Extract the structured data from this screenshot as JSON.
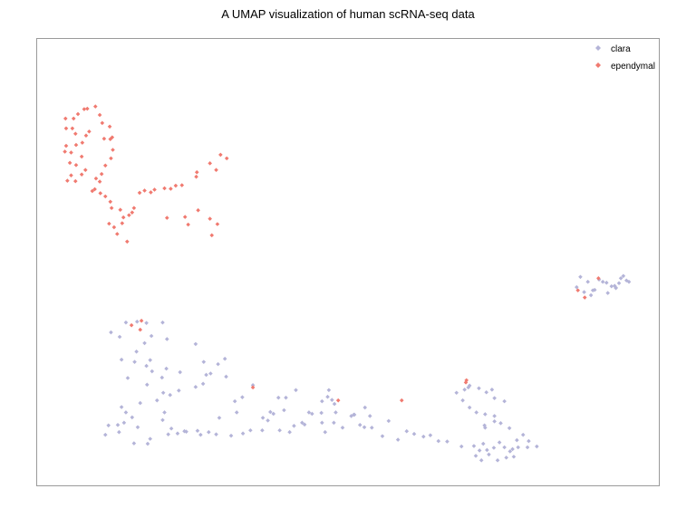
{
  "chart_data": {
    "type": "scatter",
    "title": "A UMAP visualization of human scRNA-seq data",
    "xlabel": "",
    "ylabel": "",
    "xlim": [
      0,
      100
    ],
    "ylim": [
      0,
      100
    ],
    "grid": false,
    "legend_position": "top-right",
    "series": [
      {
        "name": "clara",
        "color": "#B4B4D8",
        "points": [
          [
            14.4,
            36.4
          ],
          [
            16.2,
            36.6
          ],
          [
            17.7,
            36.3
          ],
          [
            20.3,
            36.4
          ],
          [
            12.0,
            34.2
          ],
          [
            13.4,
            33.2
          ],
          [
            18.5,
            33.4
          ],
          [
            17.4,
            31.8
          ],
          [
            21.0,
            32.7
          ],
          [
            16.1,
            29.9
          ],
          [
            13.7,
            28.1
          ],
          [
            15.8,
            27.6
          ],
          [
            17.7,
            26.7
          ],
          [
            14.7,
            24.0
          ],
          [
            18.6,
            25.5
          ],
          [
            20.9,
            26.1
          ],
          [
            18.3,
            28.0
          ],
          [
            25.6,
            31.6
          ],
          [
            26.9,
            27.6
          ],
          [
            30.3,
            28.3
          ],
          [
            23.1,
            25.3
          ],
          [
            20.2,
            24.1
          ],
          [
            17.8,
            22.5
          ],
          [
            20.4,
            20.7
          ],
          [
            19.4,
            19.0
          ],
          [
            16.7,
            18.4
          ],
          [
            13.7,
            17.5
          ],
          [
            14.4,
            16.3
          ],
          [
            15.4,
            15.2
          ],
          [
            14.1,
            14.0
          ],
          [
            13.1,
            13.5
          ],
          [
            11.6,
            13.4
          ],
          [
            16.3,
            13.0
          ],
          [
            13.3,
            11.9
          ],
          [
            11.1,
            11.3
          ],
          [
            15.7,
            9.4
          ],
          [
            17.9,
            9.3
          ],
          [
            18.3,
            10.4
          ],
          [
            21.2,
            11.4
          ],
          [
            21.7,
            12.7
          ],
          [
            20.3,
            14.6
          ],
          [
            20.6,
            16.3
          ],
          [
            21.5,
            20.2
          ],
          [
            22.9,
            21.2
          ],
          [
            25.6,
            22.0
          ],
          [
            26.8,
            22.7
          ],
          [
            27.3,
            24.7
          ],
          [
            28.0,
            25.0
          ],
          [
            29.2,
            27.1
          ],
          [
            30.5,
            24.3
          ],
          [
            33.1,
            19.7
          ],
          [
            31.9,
            18.8
          ],
          [
            34.8,
            22.4
          ],
          [
            38.1,
            16.0
          ],
          [
            36.4,
            15.1
          ],
          [
            37.6,
            16.4
          ],
          [
            38.9,
            19.6
          ],
          [
            40.1,
            19.6
          ],
          [
            41.7,
            21.3
          ],
          [
            46.8,
            19.8
          ],
          [
            39.8,
            16.8
          ],
          [
            43.8,
            16.3
          ],
          [
            44.3,
            16.0
          ],
          [
            45.9,
            18.8
          ],
          [
            47.0,
            21.3
          ],
          [
            47.5,
            19.1
          ],
          [
            47.9,
            18.2
          ],
          [
            45.8,
            16.2
          ],
          [
            48.1,
            16.3
          ],
          [
            50.6,
            15.5
          ],
          [
            51.1,
            15.8
          ],
          [
            51.0,
            15.8
          ],
          [
            52.8,
            17.4
          ],
          [
            53.6,
            15.5
          ],
          [
            56.6,
            14.4
          ],
          [
            52.7,
            13.0
          ],
          [
            52.0,
            13.5
          ],
          [
            47.8,
            14.0
          ],
          [
            45.9,
            14.0
          ],
          [
            43.1,
            13.6
          ],
          [
            41.4,
            13.3
          ],
          [
            40.7,
            11.9
          ],
          [
            39.1,
            12.3
          ],
          [
            36.3,
            12.3
          ],
          [
            33.2,
            11.6
          ],
          [
            31.3,
            11.1
          ],
          [
            28.9,
            11.4
          ],
          [
            27.7,
            11.9
          ],
          [
            26.4,
            11.3
          ],
          [
            25.9,
            12.2
          ],
          [
            22.7,
            11.6
          ],
          [
            23.8,
            12.1
          ],
          [
            24.1,
            12.0
          ],
          [
            29.4,
            15.1
          ],
          [
            32.2,
            16.3
          ],
          [
            34.4,
            12.3
          ],
          [
            37.2,
            14.5
          ],
          [
            42.7,
            14.0
          ],
          [
            46.4,
            11.9
          ],
          [
            49.2,
            12.9
          ],
          [
            53.9,
            12.9
          ],
          [
            55.6,
            11.0
          ],
          [
            58.1,
            10.2
          ],
          [
            59.5,
            12.1
          ],
          [
            60.7,
            11.5
          ],
          [
            62.2,
            10.9
          ],
          [
            63.3,
            11.2
          ],
          [
            64.6,
            9.9
          ],
          [
            66.0,
            9.8
          ],
          [
            68.3,
            8.7
          ],
          [
            70.3,
            8.8
          ],
          [
            71.2,
            7.8
          ],
          [
            72.4,
            7.9
          ],
          [
            71.8,
            9.3
          ],
          [
            73.5,
            8.4
          ],
          [
            74.4,
            9.6
          ],
          [
            75.2,
            8.5
          ],
          [
            76.1,
            7.6
          ],
          [
            76.7,
            6.4
          ],
          [
            75.5,
            6.2
          ],
          [
            74.1,
            5.6
          ],
          [
            71.5,
            5.6
          ],
          [
            70.6,
            6.6
          ],
          [
            72.7,
            6.9
          ],
          [
            76.5,
            8.1
          ],
          [
            77.4,
            8.5
          ],
          [
            78.9,
            8.5
          ],
          [
            80.4,
            8.7
          ],
          [
            79.1,
            9.9
          ],
          [
            77.2,
            10.1
          ],
          [
            78.2,
            11.3
          ],
          [
            76.0,
            12.8
          ],
          [
            74.6,
            13.9
          ],
          [
            73.6,
            14.3
          ],
          [
            72.1,
            15.9
          ],
          [
            70.7,
            16.3
          ],
          [
            69.6,
            17.4
          ],
          [
            68.5,
            19.0
          ],
          [
            67.5,
            20.7
          ],
          [
            68.8,
            21.4
          ],
          [
            69.4,
            21.9
          ],
          [
            69.6,
            22.3
          ],
          [
            71.1,
            21.7
          ],
          [
            72.3,
            20.8
          ],
          [
            73.2,
            21.4
          ],
          [
            73.6,
            19.5
          ],
          [
            75.2,
            18.8
          ],
          [
            73.6,
            15.5
          ],
          [
            72.0,
            13.4
          ],
          [
            72.1,
            12.9
          ],
          [
            86.8,
            44.3
          ],
          [
            87.4,
            46.6
          ],
          [
            88.6,
            45.5
          ],
          [
            89.1,
            42.5
          ],
          [
            89.4,
            43.6
          ],
          [
            90.4,
            46.0
          ],
          [
            91.0,
            45.5
          ],
          [
            91.6,
            45.3
          ],
          [
            92.4,
            44.5
          ],
          [
            93.1,
            44.2
          ],
          [
            93.6,
            45.2
          ],
          [
            93.9,
            46.3
          ],
          [
            94.3,
            46.8
          ],
          [
            94.8,
            45.8
          ],
          [
            95.2,
            45.5
          ],
          [
            88.0,
            43.2
          ],
          [
            89.7,
            43.7
          ],
          [
            91.8,
            43.0
          ],
          [
            92.9,
            44.6
          ],
          [
            93.1,
            44.1
          ]
        ]
      },
      {
        "name": "ependymal",
        "color": "#F07A70",
        "points": [
          [
            5.0,
            68.1
          ],
          [
            5.6,
            69.3
          ],
          [
            6.3,
            68.0
          ],
          [
            7.3,
            69.5
          ],
          [
            7.9,
            70.5
          ],
          [
            5.4,
            72.1
          ],
          [
            6.4,
            71.6
          ],
          [
            7.3,
            73.5
          ],
          [
            5.6,
            74.4
          ],
          [
            4.6,
            74.6
          ],
          [
            4.8,
            75.9
          ],
          [
            6.4,
            76.1
          ],
          [
            7.4,
            76.6
          ],
          [
            8.0,
            78.2
          ],
          [
            8.5,
            79.1
          ],
          [
            6.3,
            78.6
          ],
          [
            4.8,
            79.8
          ],
          [
            5.8,
            79.8
          ],
          [
            4.7,
            82.0
          ],
          [
            6.0,
            82.0
          ],
          [
            6.7,
            83.0
          ],
          [
            7.7,
            84.1
          ],
          [
            8.2,
            84.2
          ],
          [
            9.5,
            84.7
          ],
          [
            10.2,
            82.8
          ],
          [
            10.6,
            81.0
          ],
          [
            11.8,
            80.2
          ],
          [
            12.2,
            77.8
          ],
          [
            10.9,
            77.5
          ],
          [
            11.9,
            77.4
          ],
          [
            12.3,
            75.0
          ],
          [
            12.0,
            73.1
          ],
          [
            11.1,
            71.5
          ],
          [
            10.5,
            69.6
          ],
          [
            9.6,
            68.6
          ],
          [
            10.2,
            67.9
          ],
          [
            9.4,
            66.2
          ],
          [
            9.0,
            65.8
          ],
          [
            10.3,
            65.3
          ],
          [
            11.1,
            64.6
          ],
          [
            11.9,
            63.4
          ],
          [
            12.1,
            62.0
          ],
          [
            11.7,
            58.5
          ],
          [
            14.0,
            59.9
          ],
          [
            13.8,
            58.6
          ],
          [
            12.5,
            57.7
          ],
          [
            13.0,
            56.2
          ],
          [
            14.6,
            54.5
          ],
          [
            13.5,
            61.6
          ],
          [
            14.9,
            60.4
          ],
          [
            15.4,
            61.0
          ],
          [
            15.7,
            62.0
          ],
          [
            16.6,
            65.4
          ],
          [
            17.4,
            65.9
          ],
          [
            18.4,
            65.5
          ],
          [
            19.0,
            66.1
          ],
          [
            20.6,
            66.4
          ],
          [
            21.6,
            66.3
          ],
          [
            22.4,
            67.0
          ],
          [
            23.4,
            67.1
          ],
          [
            25.7,
            69.0
          ],
          [
            25.8,
            70.0
          ],
          [
            27.9,
            72.0
          ],
          [
            28.9,
            70.5
          ],
          [
            29.6,
            73.9
          ],
          [
            30.6,
            73.1
          ],
          [
            21.0,
            59.8
          ],
          [
            23.9,
            60.0
          ],
          [
            24.4,
            58.3
          ],
          [
            26.0,
            61.5
          ],
          [
            27.9,
            59.6
          ],
          [
            29.1,
            58.4
          ],
          [
            28.2,
            55.9
          ],
          [
            15.3,
            35.8
          ],
          [
            16.9,
            36.8
          ],
          [
            34.8,
            21.9
          ],
          [
            48.5,
            19.0
          ],
          [
            58.7,
            19.0
          ],
          [
            69.1,
            23.5
          ],
          [
            88.1,
            42.0
          ],
          [
            90.3,
            46.3
          ],
          [
            87.0,
            43.6
          ],
          [
            69.0,
            23.0
          ],
          [
            16.7,
            34.8
          ]
        ]
      }
    ]
  }
}
